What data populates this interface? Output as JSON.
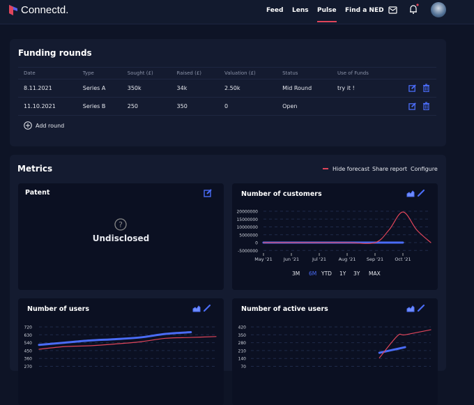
{
  "header": {
    "brand": "Connectd.",
    "nav": [
      {
        "label": "Feed"
      },
      {
        "label": "Lens"
      },
      {
        "label": "Pulse",
        "active": true
      },
      {
        "label": "Find a NED"
      }
    ],
    "icons": [
      "mail-icon",
      "bell-icon",
      "avatar"
    ],
    "notification_dot": true
  },
  "funding": {
    "title": "Funding rounds",
    "columns": [
      "Date",
      "Type",
      "Sought (£)",
      "Raised (£)",
      "Valuation (£)",
      "Status",
      "Use of Funds"
    ],
    "rows": [
      [
        "8.11.2021",
        "Series A",
        "350k",
        "34k",
        "2.50k",
        "Mid Round",
        "try it !"
      ],
      [
        "11.10.2021",
        "Series B",
        "250",
        "350",
        "0",
        "Open",
        ""
      ]
    ],
    "add_label": "Add round"
  },
  "metrics": {
    "title": "Metrics",
    "hide_forecast": "Hide forecast",
    "share": "Share report",
    "configure": "Configure",
    "patent": {
      "title": "Patent",
      "value": "Undisclosed"
    },
    "ranges": [
      "3M",
      "6M",
      "YTD",
      "1Y",
      "3Y",
      "MAX"
    ],
    "selected_range": "6M"
  },
  "colors": {
    "actual": "#4a6cf7",
    "forecast": "#e0455a",
    "accent": "#e0455a"
  },
  "chart_data": [
    {
      "type": "line",
      "title": "Number of customers",
      "y_ticks": [
        "20000000",
        "15000000",
        "10000000",
        "5000000",
        "0",
        "-5000000"
      ],
      "ylim": [
        -5000000,
        20000000
      ],
      "x_ticks": [
        "May '21",
        "Jun '21",
        "Jul '21",
        "Aug '21",
        "Sep '21",
        "Oct '21"
      ],
      "xlim": [
        0,
        6
      ],
      "series": [
        {
          "x": [
            0,
            1,
            2,
            3,
            4,
            5
          ],
          "values": [
            0,
            0,
            0,
            0,
            0,
            0
          ],
          "kind": "actual"
        },
        {
          "x": [
            0,
            1,
            2,
            3,
            4,
            4.5,
            5,
            5.5,
            6
          ],
          "values": [
            0,
            0,
            0,
            0,
            0,
            8000000,
            19500000,
            8000000,
            0
          ],
          "kind": "forecast"
        }
      ]
    },
    {
      "type": "line",
      "title": "Number of users",
      "y_ticks": [
        "720",
        "630",
        "540",
        "450",
        "360",
        "270"
      ],
      "ylim": [
        270,
        720
      ],
      "xlim": [
        0,
        7
      ],
      "series": [
        {
          "x": [
            0,
            1,
            2,
            3,
            4,
            5,
            6
          ],
          "values": [
            515,
            540,
            565,
            580,
            600,
            640,
            660
          ],
          "kind": "actual"
        },
        {
          "x": [
            0,
            1,
            2,
            3,
            4,
            5,
            6,
            7
          ],
          "values": [
            465,
            495,
            505,
            525,
            550,
            590,
            600,
            610
          ],
          "kind": "forecast"
        }
      ]
    },
    {
      "type": "line",
      "title": "Number of active users",
      "y_ticks": [
        "420",
        "350",
        "280",
        "210",
        "140",
        "70"
      ],
      "ylim": [
        70,
        420
      ],
      "xlim": [
        0,
        7
      ],
      "series": [
        {
          "x": [
            5,
            5.5,
            6
          ],
          "values": [
            190,
            215,
            240
          ],
          "kind": "actual"
        },
        {
          "x": [
            5,
            5.7,
            6,
            7
          ],
          "values": [
            145,
            340,
            350,
            395
          ],
          "kind": "forecast"
        }
      ]
    }
  ]
}
